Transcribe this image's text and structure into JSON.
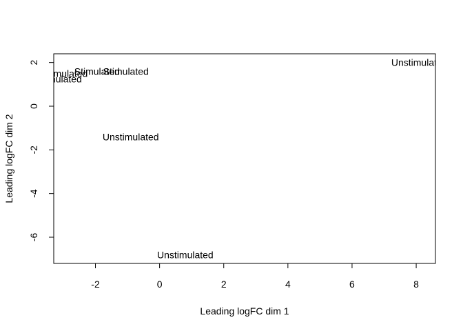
{
  "chart_data": {
    "type": "scatter",
    "title": "",
    "xlabel": "Leading logFC dim 1",
    "ylabel": "Leading logFC dim 2",
    "xlim": [
      -3.3,
      8.6
    ],
    "ylim": [
      -7.2,
      2.4
    ],
    "xticks": [
      "-2",
      "0",
      "2",
      "4",
      "6",
      "8"
    ],
    "yticks": [
      "2",
      "0",
      "-2",
      "-4",
      "-6"
    ],
    "xtick_values": [
      -2,
      0,
      2,
      4,
      6,
      8
    ],
    "ytick_values": [
      2,
      0,
      -2,
      -4,
      -6
    ],
    "grid": false,
    "points": [
      {
        "x": -1.95,
        "y": 1.6,
        "label": "Stimulated"
      },
      {
        "x": -2.95,
        "y": 1.5,
        "label": "Stimulated"
      },
      {
        "x": -1.05,
        "y": 1.6,
        "label": "Stimulated"
      },
      {
        "x": -3.3,
        "y": 1.25,
        "label": "Unstimulated"
      },
      {
        "x": -0.9,
        "y": -1.4,
        "label": "Unstimulated"
      },
      {
        "x": 0.8,
        "y": -6.8,
        "label": "Unstimulated"
      },
      {
        "x": 8.1,
        "y": 2.0,
        "label": "Unstimulated"
      }
    ]
  }
}
